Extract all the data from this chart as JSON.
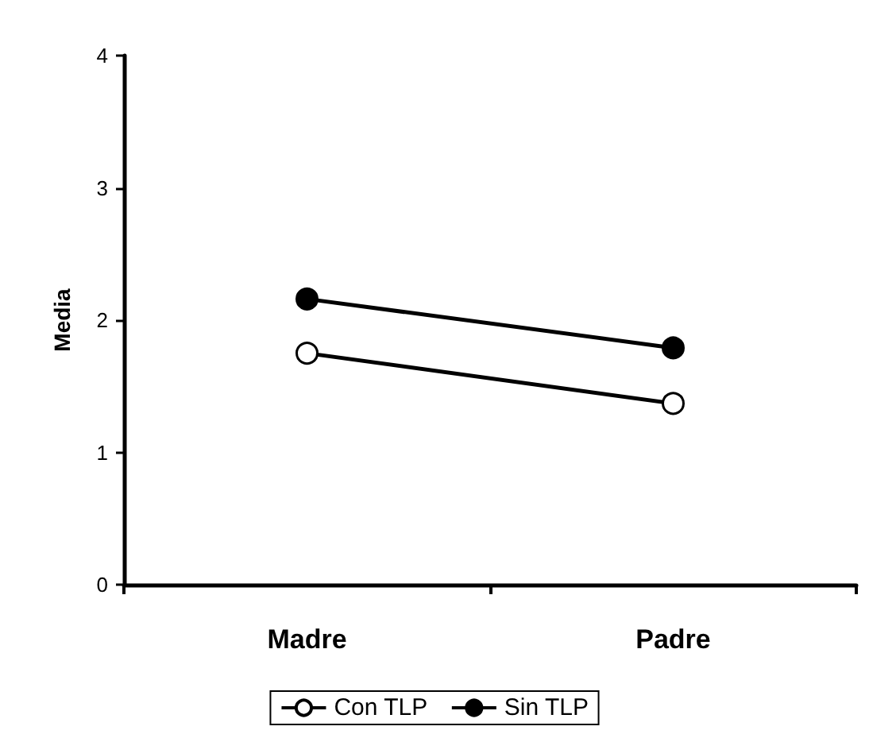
{
  "chart_data": {
    "type": "line",
    "ylabel": "Media",
    "categories": [
      "Madre",
      "Padre"
    ],
    "series": [
      {
        "name": "Con TLP",
        "color": "#000000",
        "values": [
          1.75,
          1.37
        ]
      },
      {
        "name": "Sin TLP",
        "color": "#000000",
        "values": [
          2.16,
          1.79
        ]
      }
    ],
    "marker": "circle",
    "ylim": [
      0,
      4
    ],
    "yticks": [
      0,
      1,
      2,
      3,
      4
    ],
    "grid": false,
    "legend": "bottom"
  }
}
